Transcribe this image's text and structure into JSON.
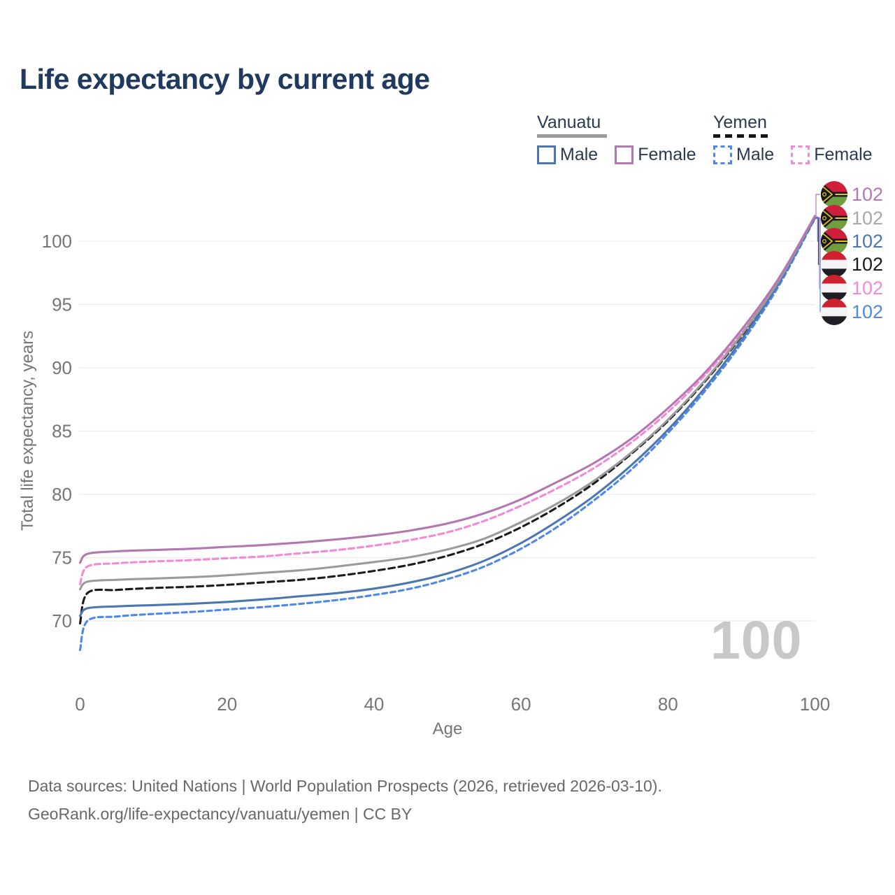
{
  "title": "Life expectancy by current age",
  "legend": {
    "groups": [
      {
        "name": "Vanuatu",
        "line_style": "solid",
        "items": [
          {
            "label": "Male",
            "color": "#4c76b2"
          },
          {
            "label": "Female",
            "color": "#b378b1"
          }
        ]
      },
      {
        "name": "Yemen",
        "line_style": "dashed",
        "items": [
          {
            "label": "Male",
            "color": "#4e88e8"
          },
          {
            "label": "Female",
            "color": "#f28ad7"
          }
        ]
      }
    ]
  },
  "watermark": "100",
  "footer": {
    "line1": "Data sources: United Nations | World Population Prospects (2026, retrieved 2026-03-10).",
    "line2": "GeoRank.org/life-expectancy/vanuatu/yemen | CC BY"
  },
  "chart_data": {
    "type": "line",
    "title": "Life expectancy by current age",
    "xlabel": "Age",
    "ylabel": "Total life expectancy, years",
    "xlim": [
      0,
      100
    ],
    "ylim": [
      67,
      103
    ],
    "x_ticks": [
      0,
      20,
      40,
      60,
      80,
      100
    ],
    "y_ticks": [
      70,
      75,
      80,
      85,
      90,
      95,
      100
    ],
    "grid": "horizontal",
    "legend_position": "top-right",
    "x": [
      0,
      1,
      5,
      10,
      15,
      20,
      25,
      30,
      35,
      40,
      45,
      50,
      55,
      60,
      65,
      70,
      75,
      80,
      85,
      90,
      95,
      100
    ],
    "series": [
      {
        "name": "Vanuatu Female",
        "country": "Vanuatu",
        "sex": "Female",
        "color": "#b378b1",
        "dash": "",
        "flag_icon": "vanuatu-flag-icon",
        "end_label": "102",
        "values": [
          74.6,
          75.3,
          75.5,
          75.6,
          75.7,
          75.85,
          76.0,
          76.2,
          76.45,
          76.75,
          77.15,
          77.7,
          78.5,
          79.6,
          81.0,
          82.5,
          84.4,
          86.8,
          89.6,
          93.0,
          97.0,
          102.0
        ]
      },
      {
        "name": "Vanuatu Total",
        "country": "Vanuatu",
        "sex": "Total",
        "color": "#9b9b9b",
        "dash": "",
        "flag_icon": "vanuatu-flag-icon",
        "end_label": "102",
        "values": [
          72.5,
          73.1,
          73.25,
          73.35,
          73.45,
          73.6,
          73.8,
          74.0,
          74.3,
          74.65,
          75.05,
          75.65,
          76.5,
          77.8,
          79.3,
          81.1,
          83.3,
          85.9,
          89.0,
          92.6,
          96.8,
          101.95
        ]
      },
      {
        "name": "Vanuatu Male",
        "country": "Vanuatu",
        "sex": "Male",
        "color": "#4c76b2",
        "dash": "",
        "flag_icon": "vanuatu-flag-icon",
        "end_label": "102",
        "values": [
          70.4,
          71.0,
          71.15,
          71.25,
          71.35,
          71.5,
          71.7,
          71.95,
          72.2,
          72.55,
          73.05,
          73.75,
          74.75,
          76.15,
          77.9,
          79.9,
          82.3,
          85.1,
          88.4,
          92.2,
          96.6,
          101.9
        ]
      },
      {
        "name": "Yemen Total",
        "country": "Yemen",
        "sex": "Total",
        "color": "#1b1b1b",
        "dash": "9 5.5",
        "flag_icon": "yemen-flag-icon",
        "end_label": "102",
        "values": [
          69.8,
          72.2,
          72.45,
          72.6,
          72.7,
          72.85,
          73.05,
          73.25,
          73.55,
          73.95,
          74.45,
          75.15,
          76.1,
          77.4,
          79.0,
          80.9,
          83.2,
          85.8,
          88.9,
          92.5,
          96.7,
          101.85
        ]
      },
      {
        "name": "Yemen Female",
        "country": "Yemen",
        "sex": "Female",
        "color": "#f28ad7",
        "dash": "8 5",
        "flag_icon": "yemen-flag-icon",
        "end_label": "102",
        "values": [
          72.9,
          74.3,
          74.55,
          74.7,
          74.8,
          74.95,
          75.1,
          75.35,
          75.6,
          75.95,
          76.4,
          77.0,
          77.9,
          79.1,
          80.5,
          82.1,
          84.1,
          86.5,
          89.4,
          92.8,
          96.9,
          101.9
        ]
      },
      {
        "name": "Yemen Male",
        "country": "Yemen",
        "sex": "Male",
        "color": "#4e88e8",
        "dash": "7 5",
        "flag_icon": "yemen-flag-icon",
        "end_label": "102",
        "values": [
          67.7,
          70.0,
          70.35,
          70.55,
          70.7,
          70.9,
          71.1,
          71.35,
          71.65,
          72.05,
          72.55,
          73.3,
          74.3,
          75.7,
          77.45,
          79.55,
          81.95,
          84.85,
          88.15,
          91.95,
          96.4,
          101.8
        ]
      }
    ]
  }
}
